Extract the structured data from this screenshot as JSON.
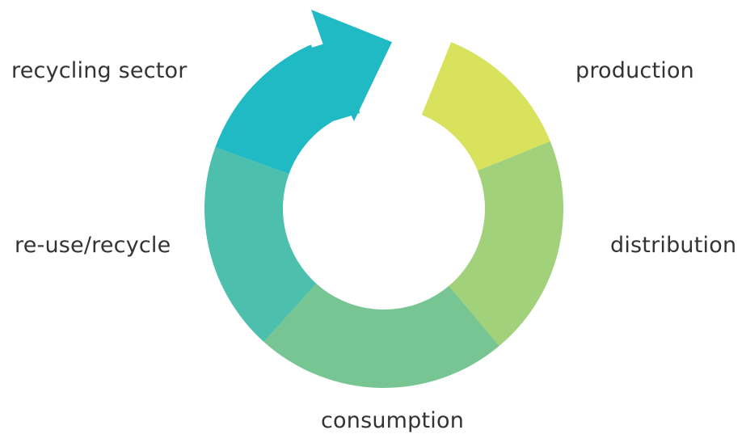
{
  "stages": [
    {
      "key": "production",
      "label": "production",
      "color": "#d8e25d"
    },
    {
      "key": "distribution",
      "label": "distribution",
      "color": "#a2d17c"
    },
    {
      "key": "consumption",
      "label": "consumption",
      "color": "#78c594"
    },
    {
      "key": "reuse",
      "label": "re-use/recycle",
      "color": "#4cbfad"
    },
    {
      "key": "recycling",
      "label": "recycling sector",
      "color": "#1fbac4"
    }
  ],
  "arrow_icon": "cycle-arrow-icon"
}
